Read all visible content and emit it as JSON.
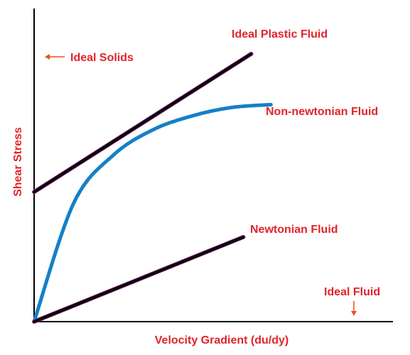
{
  "chart_data": {
    "type": "line",
    "title": "",
    "xlabel": "Velocity Gradient (du/dy)",
    "ylabel": "Shear Stress",
    "xlim": [
      0,
      10
    ],
    "ylim": [
      0,
      10
    ],
    "grid": false,
    "series": [
      {
        "name": "Ideal Plastic Fluid",
        "kind": "linear",
        "x": [
          0,
          5.5
        ],
        "y": [
          4.6,
          9.5
        ]
      },
      {
        "name": "Non-newtonian Fluid",
        "kind": "curve",
        "x": [
          0,
          1,
          2,
          3,
          4,
          5,
          6
        ],
        "y": [
          0,
          4.2,
          5.9,
          6.8,
          7.3,
          7.6,
          7.7
        ]
      },
      {
        "name": "Newtonian Fluid",
        "kind": "linear",
        "x": [
          0,
          5.3
        ],
        "y": [
          0,
          3.0
        ]
      }
    ],
    "annotations": [
      {
        "text": "Ideal Solids",
        "arrow": "left"
      },
      {
        "text": "Ideal Fluid",
        "arrow": "down"
      }
    ]
  },
  "colors": {
    "axis": "#000000",
    "text": "#e0242a",
    "arrow": "#e8531c",
    "black_line": "#0a0a0a",
    "black_line_edge": "#b03aa8",
    "curve": "#1480c6"
  }
}
